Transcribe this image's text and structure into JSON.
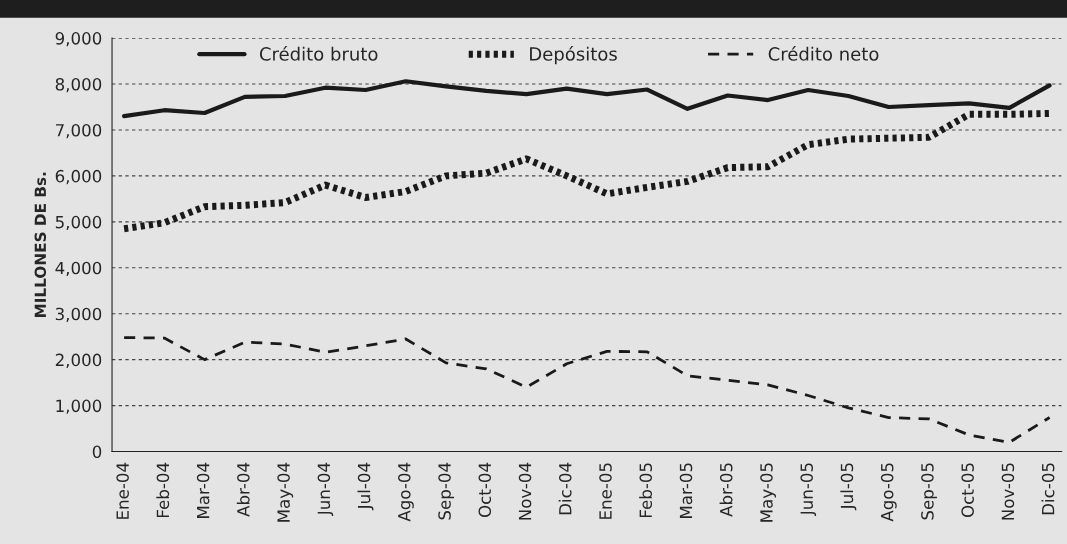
{
  "chart_data": {
    "type": "line",
    "ylabel": "MILLONES DE Bs.",
    "categories": [
      "Ene-04",
      "Feb-04",
      "Mar-04",
      "Abr-04",
      "May-04",
      "Jun-04",
      "Jul-04",
      "Ago-04",
      "Sep-04",
      "Oct-04",
      "Nov-04",
      "Dic-04",
      "Ene-05",
      "Feb-05",
      "Mar-05",
      "Abr-05",
      "May-05",
      "Jun-05",
      "Jul-05",
      "Ago-05",
      "Sep-05",
      "Oct-05",
      "Nov-05",
      "Dic-05"
    ],
    "series": [
      {
        "name": "Crédito bruto",
        "color": "#1a1a1a",
        "line_style": "solid",
        "values": [
          7300,
          7430,
          7370,
          7720,
          7740,
          7920,
          7870,
          8060,
          7950,
          7850,
          7780,
          7900,
          7780,
          7880,
          7460,
          7750,
          7650,
          7870,
          7740,
          7500,
          7540,
          7580,
          7480,
          7970
        ]
      },
      {
        "name": "Depósitos",
        "color": "#1a1a1a",
        "line_style": "dotted",
        "values": [
          4850,
          4980,
          5330,
          5360,
          5420,
          5800,
          5530,
          5660,
          6000,
          6060,
          6370,
          6000,
          5610,
          5750,
          5880,
          6180,
          6200,
          6680,
          6800,
          6820,
          6840,
          7340,
          7340,
          7360
        ]
      },
      {
        "name": "Crédito neto",
        "color": "#1a1a1a",
        "line_style": "dashed",
        "values": [
          2480,
          2470,
          2000,
          2380,
          2340,
          2160,
          2300,
          2450,
          1930,
          1800,
          1400,
          1910,
          2180,
          2170,
          1650,
          1550,
          1450,
          1220,
          950,
          740,
          710,
          360,
          200,
          740
        ]
      }
    ],
    "ylim": [
      0,
      9000
    ],
    "yticks": [
      {
        "value": 0,
        "label": "0"
      },
      {
        "value": 1000,
        "label": "1,000"
      },
      {
        "value": 2000,
        "label": "2,000"
      },
      {
        "value": 3000,
        "label": "3,000"
      },
      {
        "value": 4000,
        "label": "4,000"
      },
      {
        "value": 5000,
        "label": "5,000"
      },
      {
        "value": 6000,
        "label": "6,000"
      },
      {
        "value": 7000,
        "label": "7,000"
      },
      {
        "value": 8000,
        "label": "8,000"
      },
      {
        "value": 9000,
        "label": "9,000"
      }
    ],
    "grid": "y",
    "legend": "top",
    "marker": "none"
  }
}
